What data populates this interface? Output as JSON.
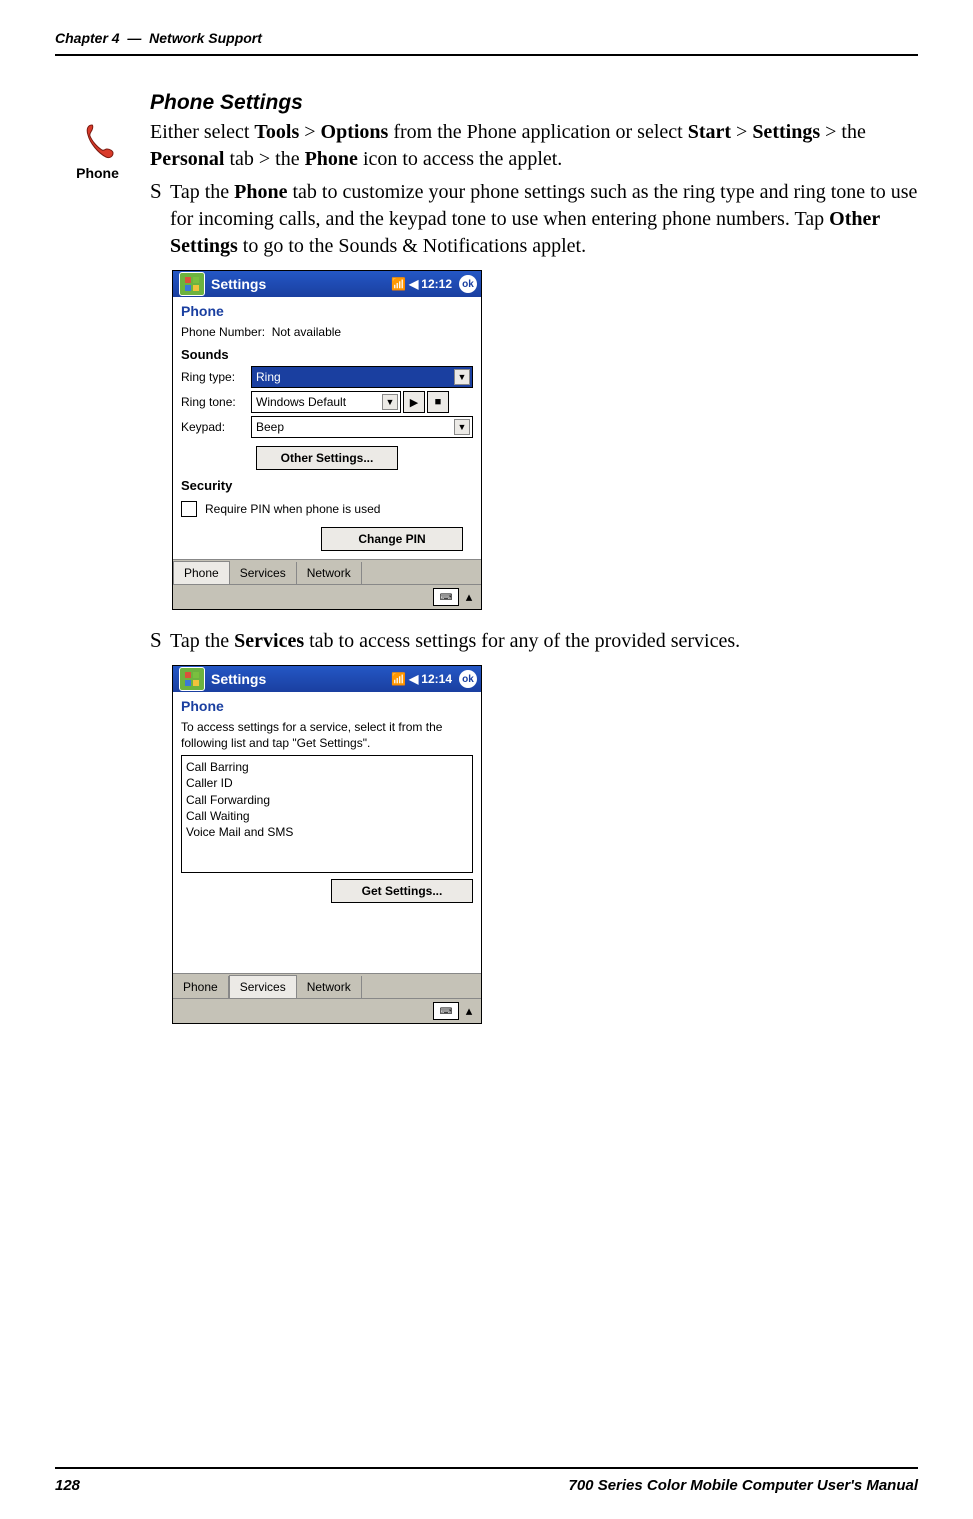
{
  "header": {
    "chapter": "Chapter 4",
    "separator": "—",
    "title": "Network Support"
  },
  "icon": {
    "label": "Phone"
  },
  "section": {
    "heading": "Phone Settings"
  },
  "intro": {
    "parts": [
      "Either select ",
      "Tools",
      " > ",
      "Options",
      " from the Phone application or select ",
      "Start",
      " > ",
      "Settings",
      " > the ",
      "Personal",
      " tab > the ",
      "Phone",
      " icon to access the applet."
    ],
    "bold_indices": [
      1,
      3,
      5,
      7,
      9,
      11
    ]
  },
  "bullet1": {
    "parts": [
      "Tap the ",
      "Phone",
      " tab to customize your phone settings such as the ring type and ring tone to use for incoming calls, and the keypad tone to use when entering phone numbers. Tap ",
      "Other Settings",
      " to go to the Sounds & Notifications applet."
    ],
    "bold_indices": [
      1,
      3
    ]
  },
  "bullet2": {
    "parts": [
      "Tap the ",
      "Services",
      " tab to access settings for any of the provided services."
    ],
    "bold_indices": [
      1
    ]
  },
  "screenshot1": {
    "windowTitle": "Settings",
    "clock": "12:12",
    "ok": "ok",
    "heading": "Phone",
    "phoneNumberLabel": "Phone Number:",
    "phoneNumberValue": "Not available",
    "soundsHeading": "Sounds",
    "ringTypeLabel": "Ring type:",
    "ringTypeValue": "Ring",
    "ringToneLabel": "Ring tone:",
    "ringToneValue": "Windows Default",
    "keypadLabel": "Keypad:",
    "keypadValue": "Beep",
    "otherSettingsBtn": "Other Settings...",
    "securityHeading": "Security",
    "requirePinLabel": "Require PIN when phone is used",
    "changePinBtn": "Change PIN",
    "tabs": [
      "Phone",
      "Services",
      "Network"
    ],
    "activeTab": 0
  },
  "screenshot2": {
    "windowTitle": "Settings",
    "clock": "12:14",
    "ok": "ok",
    "heading": "Phone",
    "instructions": "To access settings for a service, select it from the following list and tap \"Get Settings\".",
    "services": [
      "Call Barring",
      "Caller ID",
      "Call Forwarding",
      "Call Waiting",
      "Voice Mail and SMS"
    ],
    "getSettingsBtn": "Get Settings...",
    "tabs": [
      "Phone",
      "Services",
      "Network"
    ],
    "activeTab": 1
  },
  "footer": {
    "pageNumber": "128",
    "manualTitle": "700 Series Color Mobile Computer User's Manual"
  }
}
